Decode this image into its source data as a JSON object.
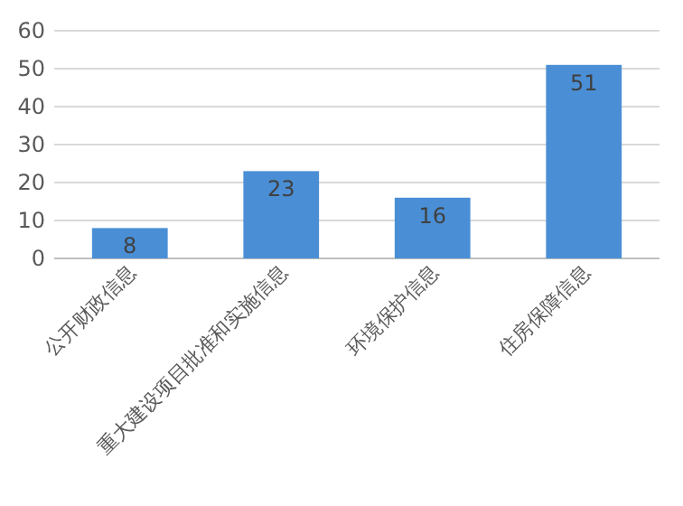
{
  "chart_data": {
    "type": "bar",
    "categories": [
      "公开财政信息",
      "重大建设项目批准和实施信息",
      "环境保护信息",
      "住房保障信息"
    ],
    "values": [
      8,
      23,
      16,
      51
    ],
    "color": "#4a8fd6",
    "ylim": [
      0,
      60
    ],
    "yticks": [
      0,
      10,
      20,
      30,
      40,
      50,
      60
    ],
    "grid": "y",
    "data_labels": true
  }
}
